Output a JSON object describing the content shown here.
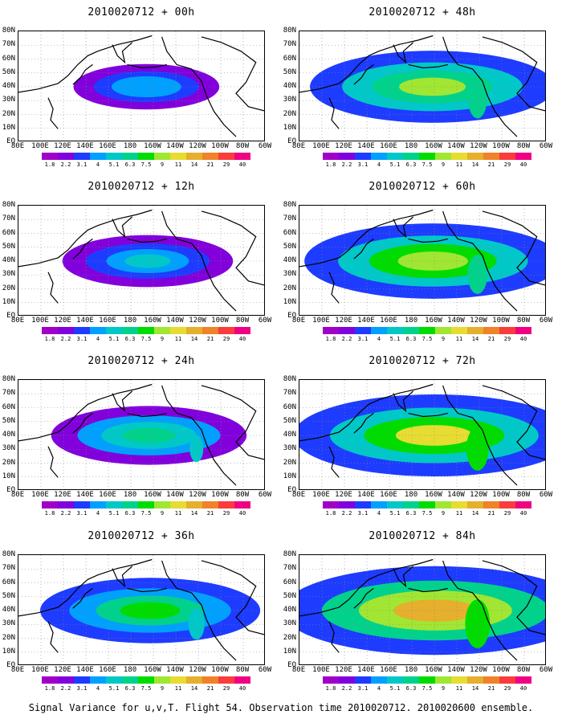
{
  "panels": [
    {
      "title": "2010020712 + 00h",
      "intensity": 0.35
    },
    {
      "title": "2010020712 + 48h",
      "intensity": 0.75
    },
    {
      "title": "2010020712 + 12h",
      "intensity": 0.45
    },
    {
      "title": "2010020712 + 60h",
      "intensity": 0.8
    },
    {
      "title": "2010020712 + 24h",
      "intensity": 0.55
    },
    {
      "title": "2010020712 + 72h",
      "intensity": 0.9
    },
    {
      "title": "2010020712 + 36h",
      "intensity": 0.65
    },
    {
      "title": "2010020712 + 84h",
      "intensity": 1.0
    }
  ],
  "lat_labels": [
    "80N",
    "70N",
    "60N",
    "50N",
    "40N",
    "30N",
    "20N",
    "10N",
    "EQ"
  ],
  "lon_labels": [
    "80E",
    "100E",
    "120E",
    "140E",
    "160E",
    "180",
    "160W",
    "140W",
    "120W",
    "100W",
    "80W",
    "60W"
  ],
  "colorbar": {
    "labels": [
      "1.8",
      "2.2",
      "3.1",
      "4",
      "5.1",
      "6.3",
      "7.5",
      "9",
      "11",
      "14",
      "21",
      "29",
      "40"
    ],
    "colors": [
      "#a000c8",
      "#8200dc",
      "#1e3cff",
      "#00a0ff",
      "#00c8c8",
      "#00d28c",
      "#00dc00",
      "#a0e632",
      "#e6dc32",
      "#e6af2d",
      "#f08228",
      "#fa3c3c",
      "#f00082"
    ]
  },
  "footer": "Signal Variance for u,v,T. Flight 54. Observation time 2010020712. 2010020600 ensemble."
}
